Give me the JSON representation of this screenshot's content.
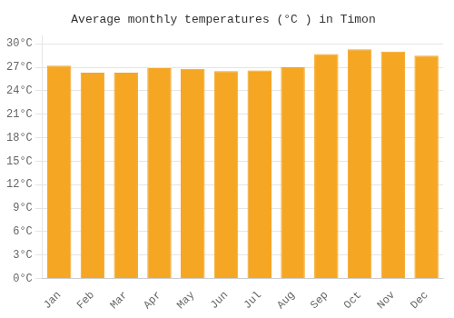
{
  "chart_data": {
    "type": "bar",
    "title": "Average monthly temperatures (°C ) in Timon",
    "categories": [
      "Jan",
      "Feb",
      "Mar",
      "Apr",
      "May",
      "Jun",
      "Jul",
      "Aug",
      "Sep",
      "Oct",
      "Nov",
      "Dec"
    ],
    "values": [
      27.2,
      26.3,
      26.3,
      26.9,
      26.8,
      26.5,
      26.6,
      27.0,
      28.7,
      29.3,
      29.0,
      28.5
    ],
    "color": "#F5A623",
    "ylim": [
      0,
      31
    ],
    "yticks": [
      {
        "value": 0,
        "label": "0°C"
      },
      {
        "value": 3,
        "label": "3°C"
      },
      {
        "value": 6,
        "label": "6°C"
      },
      {
        "value": 9,
        "label": "9°C"
      },
      {
        "value": 12,
        "label": "12°C"
      },
      {
        "value": 15,
        "label": "15°C"
      },
      {
        "value": 18,
        "label": "18°C"
      },
      {
        "value": 21,
        "label": "21°C"
      },
      {
        "value": 24,
        "label": "24°C"
      },
      {
        "value": 27,
        "label": "27°C"
      },
      {
        "value": 30,
        "label": "30°C"
      }
    ],
    "grid": true
  }
}
